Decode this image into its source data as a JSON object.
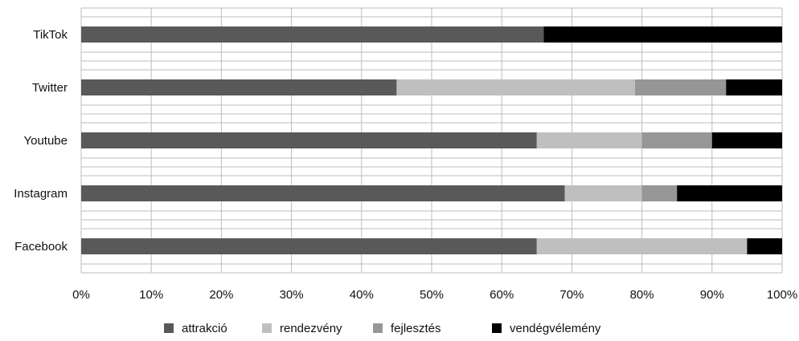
{
  "chart_data": {
    "type": "bar",
    "orientation": "horizontal",
    "stacked": "percent",
    "title": "",
    "xlabel": "",
    "ylabel": "",
    "categories": [
      "TikTok",
      "Twitter",
      "Youtube",
      "Instagram",
      "Facebook"
    ],
    "series": [
      {
        "name": "attrakció",
        "color": "#595959",
        "values": [
          66,
          45,
          65,
          69,
          65
        ]
      },
      {
        "name": "rendezvény",
        "color": "#bfbfbf",
        "values": [
          0,
          34,
          15,
          11,
          30
        ]
      },
      {
        "name": "fejlesztés",
        "color": "#969696",
        "values": [
          0,
          13,
          10,
          5,
          0
        ]
      },
      {
        "name": "vendégvélemény",
        "color": "#000000",
        "values": [
          34,
          8,
          10,
          15,
          5
        ]
      }
    ],
    "xlim": [
      0,
      100
    ],
    "x_ticks": [
      "0%",
      "10%",
      "20%",
      "30%",
      "40%",
      "50%",
      "60%",
      "70%",
      "80%",
      "90%",
      "100%"
    ],
    "grid": true,
    "legend_position": "bottom"
  }
}
